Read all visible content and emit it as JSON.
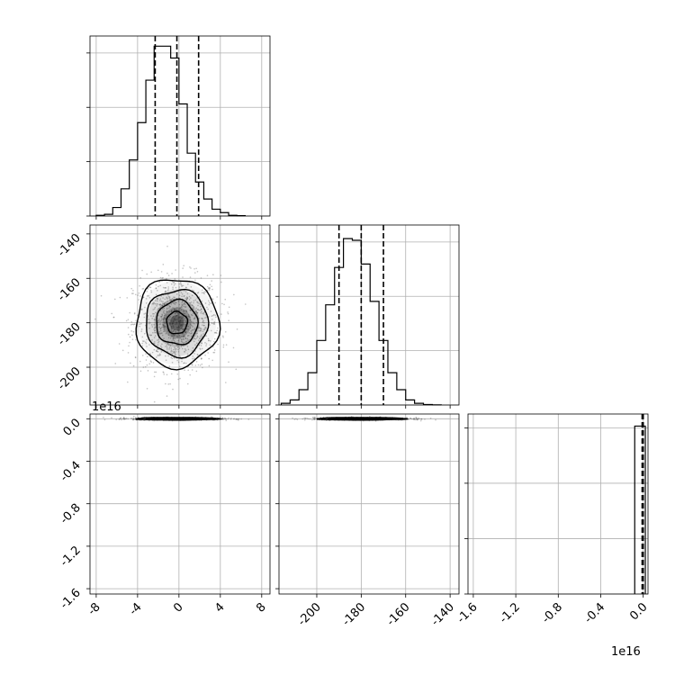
{
  "chart_data": {
    "type": "corner",
    "grid": true,
    "colors": {
      "hist": "#000000",
      "grid": "#b0b0b0",
      "points": "#555555"
    },
    "panels": [
      {
        "id": "hist-param1",
        "type": "histogram",
        "xlim": [
          -8.6,
          8.8
        ],
        "ylim": [
          0,
          1.06
        ],
        "x_ticks": [
          -8,
          -4,
          0,
          4,
          8
        ],
        "y_ticks": [
          0,
          0.32,
          0.64,
          0.96
        ],
        "bin_edges": [
          -8,
          -7.2,
          -6.4,
          -5.6,
          -4.8,
          -4.0,
          -3.2,
          -2.4,
          -1.6,
          -0.8,
          0,
          0.8,
          1.6,
          2.4,
          3.2,
          4.0,
          4.8,
          5.6,
          6.4
        ],
        "counts": [
          0.004,
          0.01,
          0.05,
          0.16,
          0.33,
          0.55,
          0.8,
          1.0,
          1.0,
          0.93,
          0.66,
          0.37,
          0.2,
          0.1,
          0.04,
          0.02,
          0.004,
          0.002
        ],
        "quantiles": [
          -2.3,
          -0.2,
          1.9
        ]
      },
      {
        "id": "hist-param2",
        "type": "histogram",
        "xlim": [
          -217,
          -136
        ],
        "ylim": [
          0,
          1.06
        ],
        "x_ticks": [
          -200,
          -180,
          -160,
          -140
        ],
        "y_ticks": [
          0,
          0.32,
          0.64,
          0.96
        ],
        "bin_edges": [
          -216,
          -212,
          -208,
          -204,
          -200,
          -196,
          -192,
          -188,
          -184,
          -180,
          -176,
          -172,
          -168,
          -164,
          -160,
          -156,
          -152,
          -148,
          -144
        ],
        "counts": [
          0.01,
          0.03,
          0.09,
          0.19,
          0.38,
          0.59,
          0.81,
          0.98,
          0.97,
          0.83,
          0.61,
          0.38,
          0.19,
          0.09,
          0.03,
          0.01,
          0.003,
          0.001
        ],
        "quantiles": [
          -190,
          -180,
          -170
        ]
      },
      {
        "id": "hist-param3",
        "type": "histogram",
        "xlim": [
          -1.65,
          0.045
        ],
        "ylim": [
          0,
          1.04
        ],
        "x_ticks": [
          -1.6,
          -1.2,
          -0.8,
          -0.4,
          0.0
        ],
        "y_ticks": [
          0,
          0.32,
          0.64,
          0.96
        ],
        "bin_edges": [
          -0.08,
          0.0,
          0.02
        ],
        "counts": [
          0.97,
          0.97
        ],
        "quantiles": [
          -0.01,
          0.0
        ],
        "x_offset": "1e16"
      },
      {
        "id": "hist2d-param1-param2",
        "type": "hist2d",
        "xlim": [
          -8.6,
          8.8
        ],
        "ylim": [
          -217,
          -136
        ],
        "x_ticks": [
          -8,
          -4,
          0,
          4,
          8
        ],
        "y_ticks": [
          -200,
          -180,
          -160,
          -140
        ],
        "center": [
          -0.2,
          -180
        ],
        "sigma": [
          2.0,
          10.0
        ],
        "contour_levels": [
          0.5,
          1.0,
          1.5,
          2.0
        ]
      },
      {
        "id": "hist2d-param1-param3",
        "type": "hist2d",
        "xlim": [
          -8.6,
          8.8
        ],
        "ylim": [
          -1.65,
          0.045
        ],
        "x_ticks": [
          -8,
          -4,
          0,
          4,
          8
        ],
        "y_ticks": [
          0.0,
          -0.4,
          -0.8,
          -1.2,
          -1.6
        ],
        "center": [
          -0.2,
          0.0
        ],
        "sigma": [
          2.0,
          0.006
        ],
        "contour_levels": [
          0.5,
          1.0,
          1.5,
          2.0
        ],
        "y_offset": "1e16"
      },
      {
        "id": "hist2d-param2-param3",
        "type": "hist2d",
        "xlim": [
          -217,
          -136
        ],
        "ylim": [
          -1.65,
          0.045
        ],
        "x_ticks": [
          -200,
          -180,
          -160,
          -140
        ],
        "y_ticks": [
          0.0,
          -0.4,
          -0.8,
          -1.2,
          -1.6
        ],
        "center": [
          -180,
          0.0
        ],
        "sigma": [
          10.0,
          0.006
        ],
        "contour_levels": [
          0.5,
          1.0,
          1.5,
          2.0
        ]
      }
    ],
    "tick_labels": {
      "param1": [
        "-8",
        "-4",
        "0",
        "4",
        "8"
      ],
      "param2_y": [
        "-140",
        "-160",
        "-180",
        "-200"
      ],
      "param2_x": [
        "-200",
        "-180",
        "-160",
        "-140"
      ],
      "param3_y": [
        "0.0",
        "-0.4",
        "-0.8",
        "-1.2",
        "-1.6"
      ],
      "param3_x": [
        "-1.6",
        "-1.2",
        "-0.8",
        "-0.4",
        "0.0"
      ]
    },
    "offset_labels": {
      "left_middle": "1e16",
      "bottom_right": "1e16"
    }
  }
}
